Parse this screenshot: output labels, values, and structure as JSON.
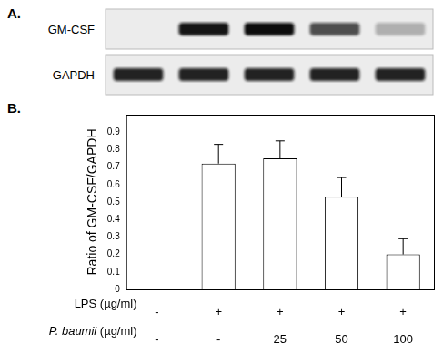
{
  "panel_a": {
    "label": "A.",
    "gel_rows": [
      "GM-CSF",
      "GAPDH"
    ]
  },
  "chart_data": {
    "label": "B.",
    "type": "bar",
    "y_label": "Ratio of GM-CSF/GAPDH",
    "categories": [
      [
        "-",
        "-"
      ],
      [
        "+",
        "-"
      ],
      [
        "+",
        "25"
      ],
      [
        "+",
        "50"
      ],
      [
        "+",
        "100"
      ]
    ],
    "category_row_labels": [
      "LPS (µg/ml)",
      "P. baumii (µg/ml)"
    ],
    "values": [
      0,
      0.72,
      0.75,
      0.53,
      0.2
    ],
    "errors": [
      0,
      0.11,
      0.1,
      0.11,
      0.09
    ],
    "color": "#ffffff",
    "ylim": [
      0,
      1
    ],
    "yticks": [
      0,
      0.1,
      0.2,
      0.3,
      0.4,
      0.5,
      0.6,
      0.7,
      0.8,
      0.9
    ],
    "grid": false
  }
}
